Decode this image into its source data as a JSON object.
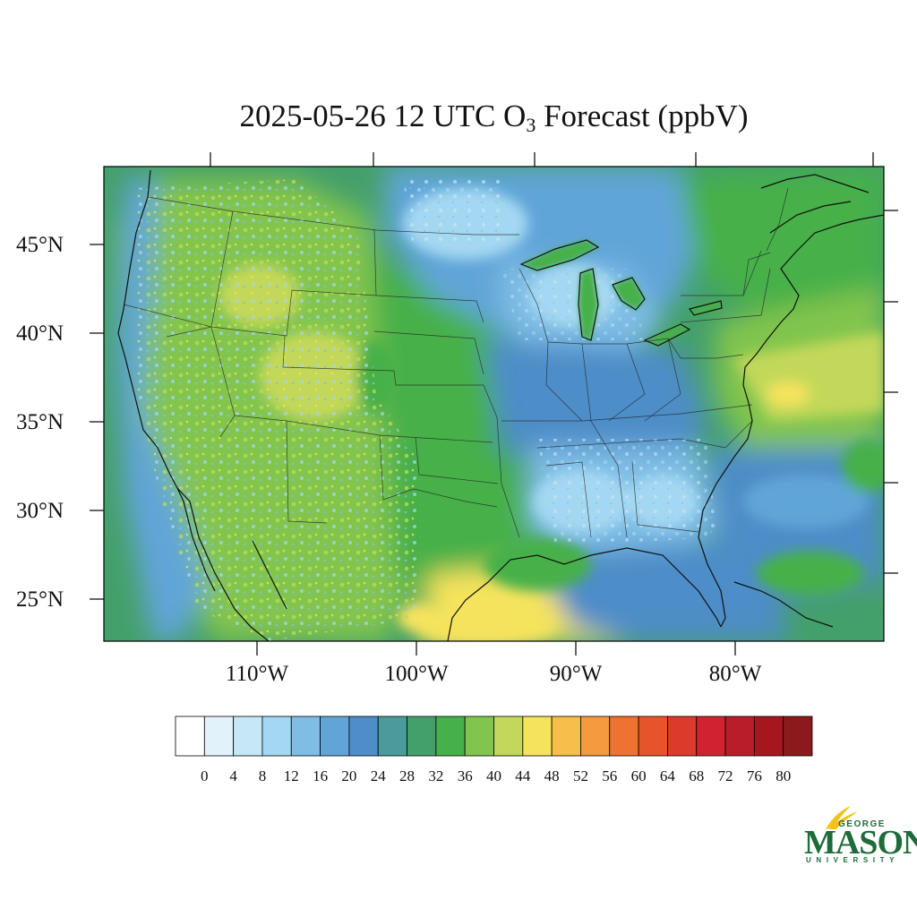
{
  "title": {
    "date_time": "2025-05-26 12 UTC O",
    "subscript": "3",
    "suffix": " Forecast (ppbV)"
  },
  "map": {
    "lat_labels": [
      "45°N",
      "40°N",
      "35°N",
      "30°N",
      "25°N"
    ],
    "lon_labels": [
      "110°W",
      "100°W",
      "90°W",
      "80°W"
    ],
    "lat_range": [
      22.5,
      49.5
    ],
    "lon_range": [
      -119.5,
      -70.5
    ]
  },
  "colorbar": {
    "tick_labels": [
      "0",
      "4",
      "8",
      "12",
      "16",
      "20",
      "24",
      "28",
      "32",
      "36",
      "40",
      "44",
      "48",
      "52",
      "56",
      "60",
      "64",
      "68",
      "72",
      "76",
      "80"
    ],
    "colors": [
      "#ffffff",
      "#e1f2fb",
      "#c5e7f7",
      "#a4d8f2",
      "#7fbde5",
      "#61a5d8",
      "#4e8dc8",
      "#4a9c9a",
      "#44a06a",
      "#46b04a",
      "#82c54e",
      "#c3d85a",
      "#f5e35d",
      "#f7bf49",
      "#f59a3e",
      "#f07230",
      "#e7532b",
      "#dc3a2b",
      "#cf2430",
      "#b81d29",
      "#a5161f",
      "#8c1a1c"
    ]
  },
  "logo": {
    "top": "GEORGE",
    "main": "MASON",
    "bottom": "UNIVERSITY"
  }
}
